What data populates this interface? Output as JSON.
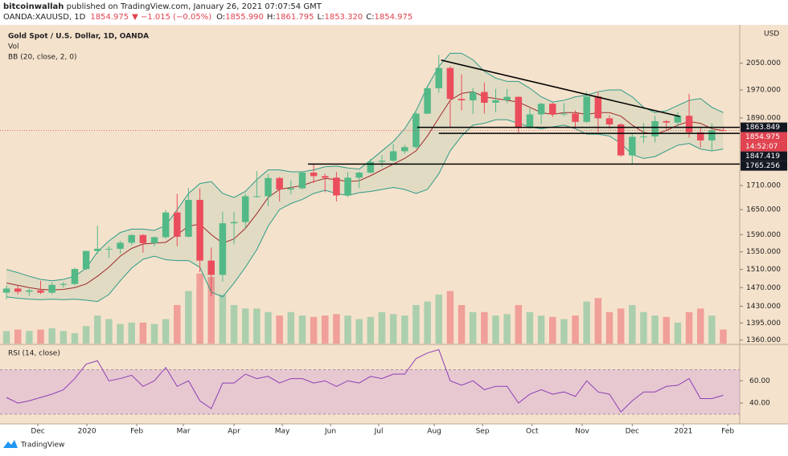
{
  "header": {
    "author": "bitcoinwallah",
    "published": " published on TradingView.com, January 26, 2021 07:07:54 GMT",
    "symbol": "OANDA:XAUUSD, 1D",
    "price": "1854.975",
    "change": "▼ −1.015 (−0.05%)",
    "ohlc": [
      {
        "key": "O:",
        "value": "1855.990"
      },
      {
        "key": "H:",
        "value": "1861.795"
      },
      {
        "key": "L:",
        "value": "1853.320"
      },
      {
        "key": "C:",
        "value": "1854.975"
      }
    ]
  },
  "footer": "TradingView",
  "chart_data": {
    "type": "candlestick",
    "title": "Gold Spot / U.S. Dollar, 1D, OANDA",
    "currency": "USD",
    "log_scale": true,
    "grid": false,
    "up_color": "#53b987",
    "down_color": "#eb4d5c",
    "categories": [
      null,
      null,
      null,
      null,
      null,
      null,
      null,
      null,
      null,
      null,
      null,
      null,
      null,
      null,
      null,
      null,
      null,
      null,
      null,
      null,
      null,
      null,
      null,
      null,
      null,
      null,
      null,
      null,
      null,
      null,
      null,
      null,
      null,
      null,
      null,
      null,
      null,
      null,
      null,
      null,
      null,
      null,
      null,
      null,
      null,
      null,
      null,
      null,
      null,
      null,
      null,
      null,
      null,
      null,
      null,
      null,
      null,
      null,
      null,
      null,
      null,
      null,
      null,
      null
    ],
    "open": [
      1459,
      1468,
      1461,
      1464,
      1459,
      1476,
      1478,
      1511,
      1552,
      1557,
      1557,
      1571,
      1589,
      1570,
      1584,
      1643,
      1585,
      1674,
      1530,
      1498,
      1617,
      1620,
      1683,
      1683,
      1729,
      1700,
      1703,
      1743,
      1734,
      1730,
      1685,
      1730,
      1743,
      1771,
      1774,
      1799,
      1810,
      1902,
      1975,
      2035,
      1944,
      1940,
      1964,
      1933,
      1940,
      1950,
      1862,
      1900,
      1930,
      1900,
      1902,
      1879,
      1951,
      1889,
      1872,
      1788,
      1838,
      1839,
      1881,
      1877,
      1896,
      1850,
      1828,
      1856
    ],
    "high": [
      1475,
      1475,
      1467,
      1485,
      1481,
      1482,
      1514,
      1553,
      1611,
      1563,
      1575,
      1591,
      1591,
      1585,
      1649,
      1689,
      1704,
      1703,
      1560,
      1645,
      1644,
      1690,
      1747,
      1739,
      1732,
      1723,
      1745,
      1765,
      1740,
      1745,
      1745,
      1746,
      1779,
      1789,
      1818,
      1816,
      1906,
      1984,
      2075,
      2040,
      2016,
      1976,
      1992,
      1973,
      1973,
      1951,
      1917,
      1933,
      1933,
      1932,
      1911,
      1965,
      1965,
      1898,
      1875,
      1848,
      1875,
      1896,
      1884,
      1906,
      1959,
      1866,
      1875,
      1862
    ],
    "low": [
      1445,
      1455,
      1452,
      1456,
      1456,
      1470,
      1475,
      1508,
      1545,
      1536,
      1546,
      1565,
      1548,
      1563,
      1580,
      1563,
      1584,
      1504,
      1451,
      1483,
      1567,
      1605,
      1680,
      1658,
      1670,
      1688,
      1700,
      1716,
      1693,
      1670,
      1681,
      1704,
      1741,
      1757,
      1771,
      1792,
      1806,
      1901,
      1962,
      1863,
      1911,
      1901,
      1902,
      1906,
      1932,
      1848,
      1860,
      1873,
      1893,
      1895,
      1860,
      1876,
      1850,
      1860,
      1785,
      1764,
      1821,
      1823,
      1855,
      1862,
      1836,
      1809,
      1802,
      1853
    ],
    "close": [
      1468,
      1461,
      1464,
      1459,
      1476,
      1478,
      1511,
      1552,
      1557,
      1557,
      1571,
      1589,
      1570,
      1584,
      1643,
      1585,
      1674,
      1530,
      1498,
      1617,
      1620,
      1683,
      1683,
      1729,
      1700,
      1703,
      1743,
      1734,
      1730,
      1685,
      1730,
      1743,
      1771,
      1774,
      1799,
      1810,
      1902,
      1975,
      2035,
      1944,
      1940,
      1964,
      1933,
      1940,
      1950,
      1862,
      1900,
      1930,
      1900,
      1902,
      1879,
      1951,
      1889,
      1872,
      1788,
      1838,
      1839,
      1881,
      1877,
      1896,
      1850,
      1828,
      1856,
      1855
    ],
    "bb": {
      "name": "BB (20, close, 2, 0)",
      "band_color": "#2e9b87",
      "basis_color": "#9e2a2b",
      "fill": "#dcd9c0",
      "upper": [
        1510,
        1503,
        1495,
        1488,
        1485,
        1488,
        1495,
        1513,
        1550,
        1575,
        1595,
        1603,
        1603,
        1600,
        1612,
        1650,
        1690,
        1715,
        1720,
        1690,
        1680,
        1695,
        1725,
        1750,
        1750,
        1745,
        1745,
        1750,
        1758,
        1760,
        1755,
        1752,
        1775,
        1800,
        1825,
        1860,
        1910,
        1980,
        2040,
        2080,
        2080,
        2060,
        2025,
        2005,
        1995,
        1995,
        1975,
        1950,
        1935,
        1940,
        1950,
        1955,
        1965,
        1970,
        1970,
        1950,
        1920,
        1905,
        1910,
        1925,
        1940,
        1945,
        1920,
        1905
      ],
      "basis": [
        1480,
        1475,
        1470,
        1466,
        1465,
        1466,
        1470,
        1478,
        1495,
        1515,
        1540,
        1558,
        1568,
        1570,
        1572,
        1590,
        1610,
        1615,
        1590,
        1570,
        1580,
        1605,
        1640,
        1680,
        1700,
        1705,
        1710,
        1720,
        1728,
        1725,
        1720,
        1722,
        1735,
        1750,
        1765,
        1780,
        1800,
        1840,
        1890,
        1940,
        1960,
        1965,
        1950,
        1945,
        1940,
        1935,
        1920,
        1905,
        1900,
        1905,
        1905,
        1900,
        1905,
        1905,
        1895,
        1870,
        1850,
        1845,
        1855,
        1870,
        1880,
        1875,
        1860,
        1855
      ],
      "lower": [
        1450,
        1447,
        1445,
        1444,
        1445,
        1444,
        1445,
        1443,
        1440,
        1455,
        1485,
        1513,
        1533,
        1540,
        1532,
        1530,
        1530,
        1515,
        1460,
        1450,
        1480,
        1515,
        1555,
        1610,
        1650,
        1665,
        1675,
        1690,
        1698,
        1690,
        1685,
        1692,
        1695,
        1700,
        1705,
        1700,
        1690,
        1700,
        1740,
        1800,
        1840,
        1870,
        1875,
        1885,
        1885,
        1875,
        1865,
        1860,
        1865,
        1870,
        1860,
        1845,
        1845,
        1840,
        1820,
        1790,
        1780,
        1785,
        1800,
        1815,
        1820,
        1805,
        1800,
        1805
      ]
    },
    "volume": {
      "name": "Vol",
      "ylim": [
        0,
        450
      ],
      "values": [
        18,
        20,
        18,
        20,
        22,
        18,
        15,
        25,
        40,
        35,
        28,
        30,
        30,
        28,
        35,
        55,
        75,
        100,
        95,
        70,
        55,
        50,
        50,
        45,
        40,
        45,
        40,
        38,
        40,
        42,
        40,
        35,
        38,
        45,
        42,
        40,
        55,
        60,
        70,
        75,
        55,
        45,
        45,
        40,
        42,
        55,
        45,
        40,
        38,
        35,
        40,
        60,
        65,
        45,
        50,
        55,
        45,
        40,
        38,
        30,
        45,
        50,
        40,
        20
      ]
    },
    "xlim": [
      -0.57,
      64.45
    ],
    "ylim": [
      1353,
      2159
    ],
    "yticks": [
      {
        "value": 2050,
        "label": "2050.000"
      },
      {
        "value": 1970,
        "label": "1970.000"
      },
      {
        "value": 1890,
        "label": "1890.000"
      },
      {
        "value": 1710,
        "label": "1710.000"
      },
      {
        "value": 1650,
        "label": "1650.000"
      },
      {
        "value": 1590,
        "label": "1590.000"
      },
      {
        "value": 1550,
        "label": "1550.000"
      },
      {
        "value": 1510,
        "label": "1510.000"
      },
      {
        "value": 1470,
        "label": "1470.000"
      },
      {
        "value": 1430,
        "label": "1430.000"
      },
      {
        "value": 1395,
        "label": "1395.000"
      },
      {
        "value": 1360,
        "label": "1360.000"
      }
    ],
    "xticks": [
      {
        "value": 2.76,
        "label": "Dec"
      },
      {
        "value": 7.07,
        "label": "2020"
      },
      {
        "value": 11.45,
        "label": "Feb"
      },
      {
        "value": 15.55,
        "label": "Mar"
      },
      {
        "value": 20.0,
        "label": "Apr"
      },
      {
        "value": 24.24,
        "label": "May"
      },
      {
        "value": 28.48,
        "label": "Jun"
      },
      {
        "value": 32.72,
        "label": "Jul"
      },
      {
        "value": 37.6,
        "label": "Aug"
      },
      {
        "value": 41.84,
        "label": "Sep"
      },
      {
        "value": 46.2,
        "label": "Oct"
      },
      {
        "value": 50.6,
        "label": "Nov"
      },
      {
        "value": 55.0,
        "label": "Dec"
      },
      {
        "value": 59.5,
        "label": "2021"
      },
      {
        "value": 63.4,
        "label": "Feb"
      }
    ],
    "levels": [
      {
        "value": 1863.849,
        "from": 36.1
      },
      {
        "value": 1847.419,
        "from": 38.0
      },
      {
        "value": 1765.256,
        "from": 26.5
      }
    ],
    "trendline": {
      "from": [
        38.2,
        2059
      ],
      "to": [
        59.2,
        1894
      ]
    },
    "last_price": 1854.975,
    "countdown": "14:52:07",
    "rsi": {
      "name": "RSI (14, close)",
      "color": "#8e3fb5",
      "ylim": [
        22,
        92
      ],
      "band": [
        30,
        70
      ],
      "yticks": [
        {
          "value": 60,
          "label": "60.00"
        },
        {
          "value": 40,
          "label": "40.00"
        }
      ],
      "values": [
        45,
        40,
        42,
        45,
        48,
        52,
        62,
        75,
        78,
        60,
        62,
        65,
        55,
        60,
        72,
        55,
        60,
        42,
        35,
        58,
        58,
        66,
        62,
        64,
        58,
        62,
        62,
        58,
        60,
        55,
        60,
        58,
        64,
        62,
        66,
        66,
        80,
        85,
        88,
        60,
        56,
        60,
        52,
        55,
        55,
        40,
        48,
        52,
        48,
        50,
        46,
        60,
        50,
        48,
        32,
        42,
        50,
        50,
        55,
        56,
        62,
        44,
        44,
        47
      ]
    }
  }
}
